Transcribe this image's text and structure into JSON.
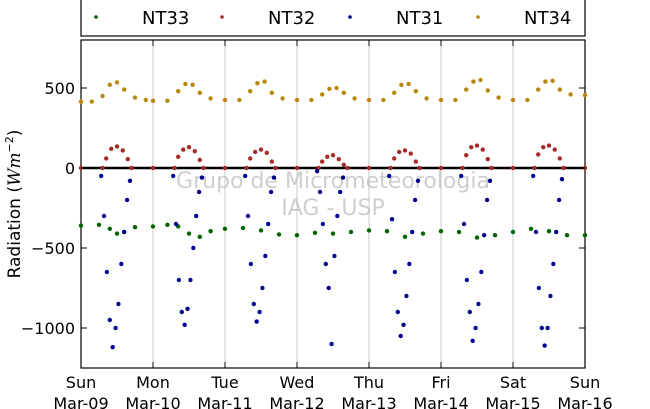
{
  "chart_data": {
    "type": "scatter",
    "ylabel_text": "Radiation (",
    "ylabel_unit_base": "Wm",
    "ylabel_unit_exp": "−2",
    "ylabel_close": ")",
    "ylim": [
      -1250,
      800
    ],
    "xlim": [
      0,
      7
    ],
    "yticks": [
      {
        "value": 500,
        "label": "500"
      },
      {
        "value": 0,
        "label": "0"
      },
      {
        "value": -500,
        "label": "−500"
      },
      {
        "value": -1000,
        "label": "−1000"
      }
    ],
    "xticks": [
      {
        "value": 0,
        "day": "Sun",
        "date": "Mar-09"
      },
      {
        "value": 1,
        "day": "Mon",
        "date": "Mar-10"
      },
      {
        "value": 2,
        "day": "Tue",
        "date": "Mar-11"
      },
      {
        "value": 3,
        "day": "Wed",
        "date": "Mar-12"
      },
      {
        "value": 4,
        "day": "Thu",
        "date": "Mar-13"
      },
      {
        "value": 5,
        "day": "Fri",
        "date": "Mar-14"
      },
      {
        "value": 6,
        "day": "Sat",
        "date": "Mar-15"
      },
      {
        "value": 7,
        "day": "Sun",
        "date": "Mar-16"
      }
    ],
    "grid": "vertical",
    "zero_line": 0,
    "legend_position": "top",
    "watermark": [
      "Grupo de Micrometeorologia",
      "IAG - USP"
    ],
    "series": [
      {
        "name": "NT33",
        "color": "#006400",
        "x": [
          0.0,
          0.25,
          0.4,
          0.5,
          0.6,
          0.75,
          1.0,
          1.2,
          1.35,
          1.5,
          1.65,
          1.8,
          2.0,
          2.25,
          2.5,
          2.75,
          3.0,
          3.25,
          3.5,
          3.75,
          4.0,
          4.25,
          4.5,
          4.75,
          5.0,
          5.25,
          5.5,
          5.75,
          6.0,
          6.25,
          6.5,
          6.75,
          7.0
        ],
        "y": [
          -360,
          -355,
          -380,
          -410,
          -400,
          -370,
          -365,
          -355,
          -365,
          -410,
          -430,
          -395,
          -380,
          -375,
          -390,
          -415,
          -420,
          -405,
          -410,
          -400,
          -390,
          -395,
          -430,
          -410,
          -395,
          -400,
          -435,
          -420,
          -400,
          -380,
          -395,
          -420,
          -420
        ]
      },
      {
        "name": "NT32",
        "color": "#a52a2a",
        "x": [
          0.0,
          0.3,
          0.35,
          0.42,
          0.5,
          0.58,
          0.65,
          0.7,
          1.0,
          1.3,
          1.35,
          1.42,
          1.5,
          1.58,
          1.65,
          1.7,
          2.0,
          2.3,
          2.35,
          2.42,
          2.5,
          2.58,
          2.65,
          2.7,
          3.0,
          3.3,
          3.35,
          3.42,
          3.5,
          3.58,
          3.65,
          3.7,
          4.0,
          4.3,
          4.35,
          4.42,
          4.5,
          4.58,
          4.65,
          4.7,
          5.0,
          5.3,
          5.35,
          5.42,
          5.5,
          5.58,
          5.65,
          5.7,
          6.0,
          6.3,
          6.35,
          6.42,
          6.5,
          6.58,
          6.65,
          6.7,
          7.0
        ],
        "y": [
          0,
          0,
          60,
          120,
          135,
          110,
          55,
          0,
          0,
          0,
          70,
          115,
          130,
          105,
          50,
          0,
          0,
          0,
          60,
          100,
          115,
          95,
          40,
          0,
          0,
          0,
          40,
          70,
          80,
          55,
          20,
          0,
          0,
          0,
          60,
          100,
          110,
          90,
          40,
          0,
          0,
          0,
          80,
          130,
          140,
          115,
          55,
          0,
          0,
          0,
          85,
          130,
          140,
          115,
          60,
          0,
          0
        ]
      },
      {
        "name": "NT31",
        "color": "#00008b",
        "x": [
          0.28,
          0.32,
          0.36,
          0.4,
          0.44,
          0.48,
          0.52,
          0.56,
          0.6,
          0.64,
          0.68,
          1.28,
          1.32,
          1.36,
          1.4,
          1.44,
          1.48,
          1.52,
          1.56,
          1.6,
          1.64,
          1.68,
          2.28,
          2.32,
          2.36,
          2.4,
          2.44,
          2.48,
          2.52,
          2.56,
          2.6,
          2.64,
          2.68,
          3.28,
          3.32,
          3.36,
          3.4,
          3.44,
          3.48,
          3.52,
          3.56,
          3.6,
          3.64,
          4.28,
          4.32,
          4.36,
          4.4,
          4.44,
          4.48,
          4.52,
          4.56,
          4.6,
          4.64,
          4.68,
          5.28,
          5.32,
          5.36,
          5.4,
          5.44,
          5.48,
          5.52,
          5.56,
          5.6,
          5.64,
          5.68,
          6.28,
          6.32,
          6.36,
          6.4,
          6.44,
          6.48,
          6.52,
          6.56,
          6.6,
          6.64,
          6.68
        ],
        "y": [
          -50,
          -300,
          -650,
          -950,
          -1120,
          -1000,
          -850,
          -600,
          -400,
          -200,
          -80,
          -50,
          -350,
          -700,
          -900,
          -980,
          -880,
          -700,
          -500,
          -300,
          -150,
          -60,
          -50,
          -300,
          -600,
          -850,
          -960,
          -900,
          -750,
          -550,
          -350,
          -150,
          -60,
          -20,
          -150,
          -350,
          -600,
          -750,
          -1100,
          -550,
          -300,
          -150,
          -60,
          -50,
          -320,
          -650,
          -900,
          -1050,
          -980,
          -800,
          -600,
          -400,
          -200,
          -80,
          -50,
          -350,
          -700,
          -900,
          -1080,
          -1000,
          -850,
          -650,
          -420,
          -200,
          -80,
          -50,
          -400,
          -750,
          -1000,
          -1110,
          -1000,
          -800,
          -600,
          -400,
          -200,
          -70
        ]
      },
      {
        "name": "NT34",
        "color": "#b8860b",
        "x": [
          0.0,
          0.15,
          0.3,
          0.4,
          0.5,
          0.6,
          0.75,
          0.9,
          1.0,
          1.2,
          1.35,
          1.45,
          1.55,
          1.65,
          1.8,
          2.0,
          2.2,
          2.35,
          2.45,
          2.55,
          2.65,
          2.8,
          3.0,
          3.2,
          3.35,
          3.45,
          3.55,
          3.65,
          3.8,
          4.0,
          4.2,
          4.35,
          4.45,
          4.55,
          4.65,
          4.8,
          5.0,
          5.2,
          5.35,
          5.45,
          5.55,
          5.65,
          5.8,
          6.0,
          6.2,
          6.35,
          6.45,
          6.55,
          6.65,
          6.8,
          7.0
        ],
        "y": [
          415,
          415,
          450,
          520,
          535,
          490,
          440,
          425,
          420,
          420,
          480,
          525,
          520,
          470,
          435,
          425,
          425,
          480,
          530,
          540,
          470,
          435,
          425,
          425,
          460,
          495,
          500,
          470,
          435,
          425,
          425,
          470,
          520,
          525,
          480,
          435,
          425,
          425,
          490,
          540,
          550,
          485,
          440,
          425,
          425,
          490,
          540,
          545,
          490,
          460,
          455
        ]
      }
    ]
  }
}
